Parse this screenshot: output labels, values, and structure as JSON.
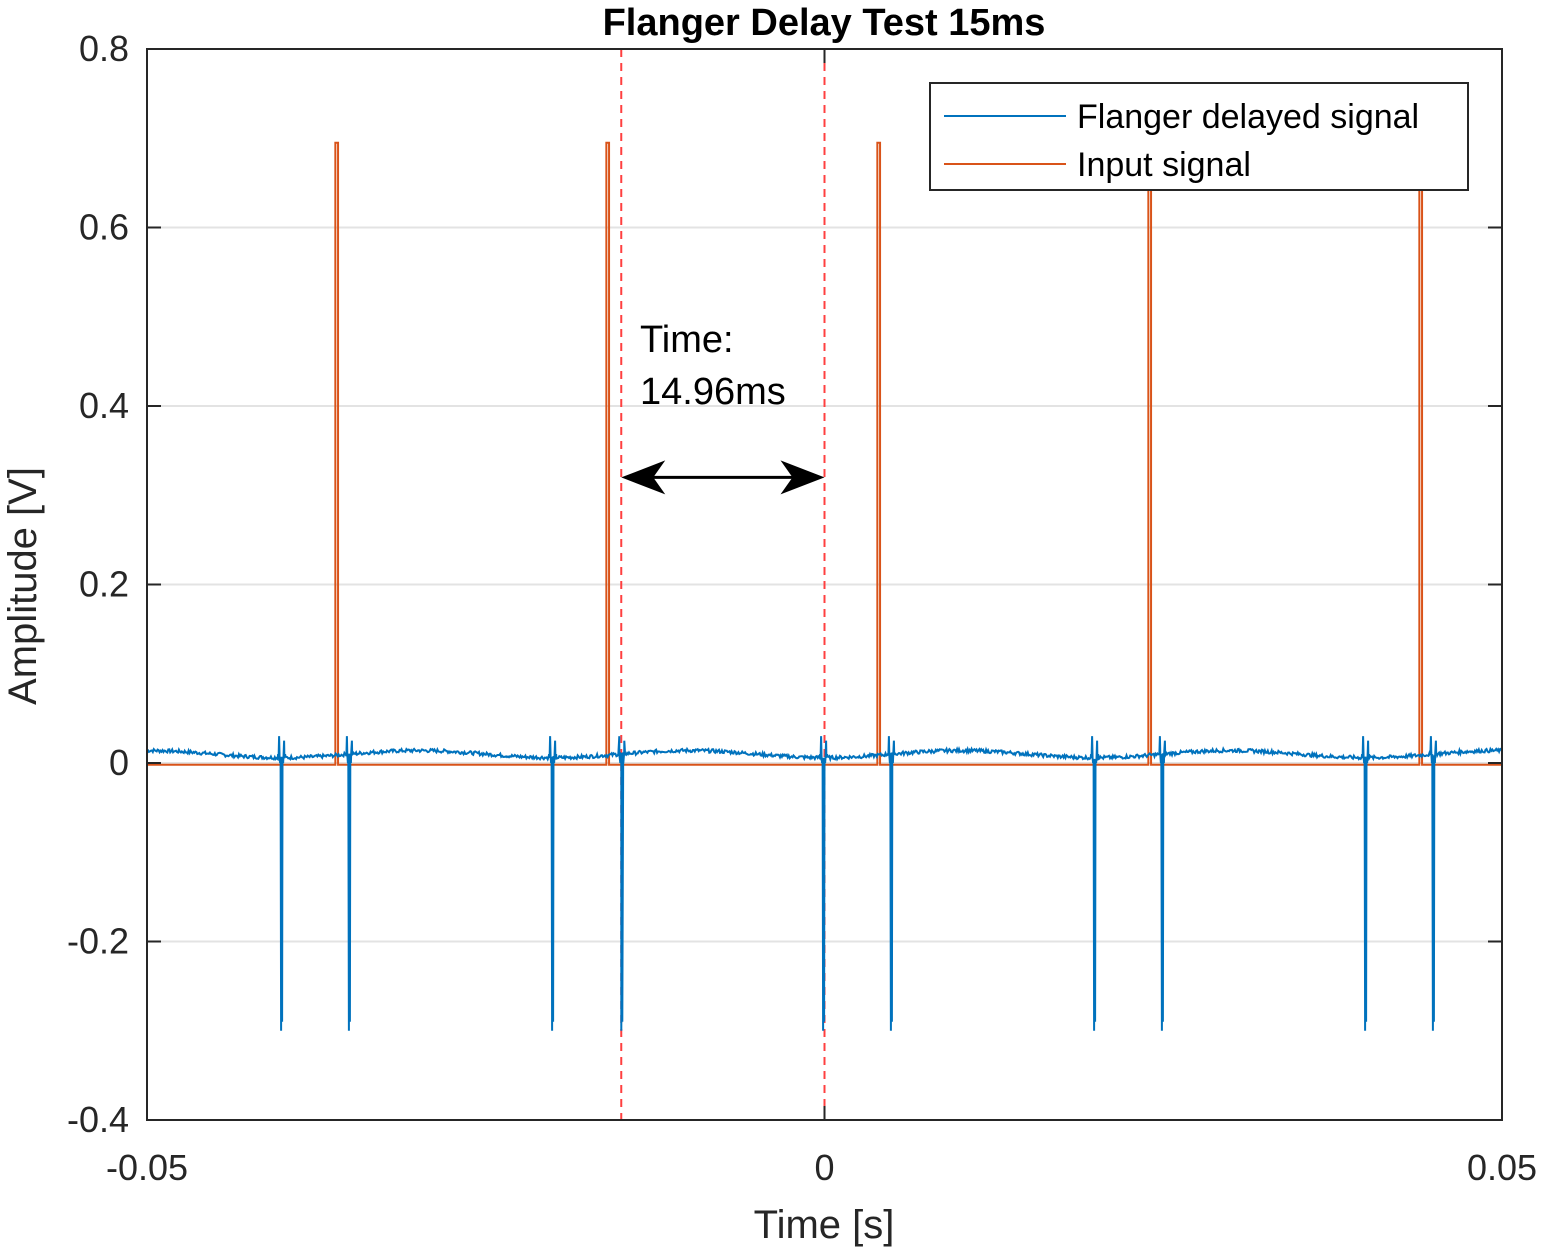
{
  "chart_data": {
    "type": "line",
    "title": "Flanger Delay Test 15ms",
    "xlabel": "Time [s]",
    "ylabel": "Amplitude [V]",
    "xlim": [
      -0.05,
      0.05
    ],
    "ylim": [
      -0.4,
      0.8
    ],
    "xticks": [
      -0.05,
      0,
      0.05
    ],
    "xtick_labels": [
      "-0.05",
      "0",
      "0.05"
    ],
    "yticks": [
      -0.4,
      -0.2,
      0,
      0.2,
      0.4,
      0.6,
      0.8
    ],
    "ytick_labels": [
      "-0.4",
      "-0.2",
      "0",
      "0.2",
      "0.4",
      "0.6",
      "0.8"
    ],
    "grid": "horizontal",
    "legend_position": "top-right",
    "series": [
      {
        "name": "Flanger delayed signal",
        "color": "#0072BD",
        "baseline": 0.01,
        "spikes_t": [
          -0.0401,
          -0.0351,
          -0.0201,
          -0.015,
          -0.0001,
          0.0049,
          0.0199,
          0.0249,
          0.0399,
          0.0449
        ],
        "spike_min": -0.3,
        "spike_max": 0.03
      },
      {
        "name": "Input signal",
        "color": "#D95319",
        "baseline": -0.002,
        "pulses_t": [
          -0.0361,
          -0.0161,
          0.0039,
          0.0239,
          0.0439
        ],
        "pulse_width": 0.0002,
        "pulse_height": 0.695
      }
    ],
    "markers": [
      {
        "x": -0.015,
        "color": "#FF4040",
        "style": "dashed"
      },
      {
        "x": 0.0,
        "color": "#FF4040",
        "style": "dashed"
      }
    ],
    "annotations": [
      {
        "text_lines": [
          "Time:",
          "14.96ms"
        ],
        "arrow_from": -0.015,
        "arrow_to": 0.0,
        "arrow_y": 0.32
      }
    ]
  }
}
